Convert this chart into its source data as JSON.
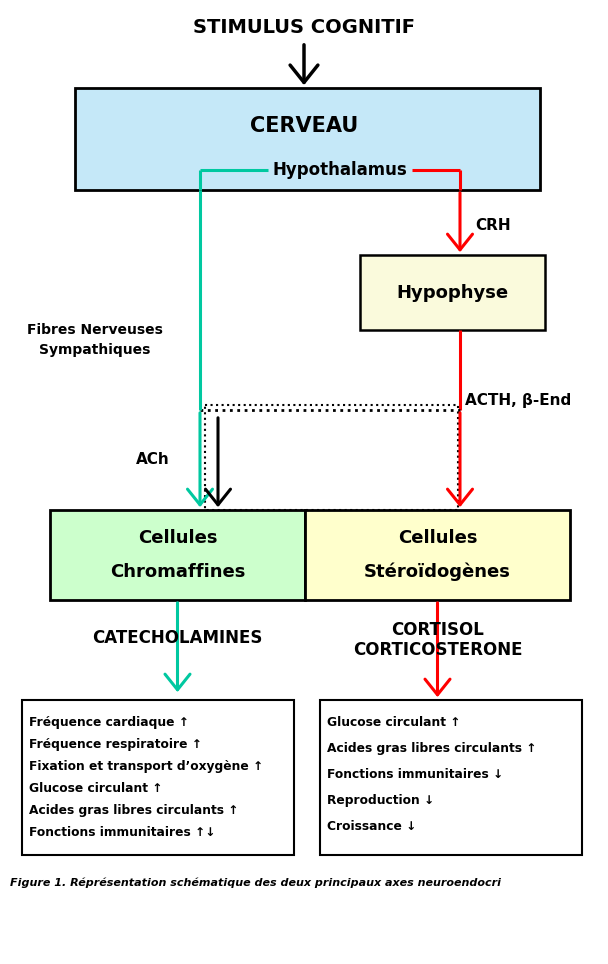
{
  "title": "STIMULUS COGNITIF",
  "cerveau_label": "CERVEAU",
  "hypothalamus_label": "Hypothalamus",
  "crh_label": "CRH",
  "hypophyse_label": "Hypophyse",
  "acth_label": "ACTH, β-End",
  "fibres_label": "Fibres Nerveuses\nSympathiques",
  "ach_label": "ACh",
  "chromaffines_label": "Cellules\nChromaffines",
  "steroidogenes_label": "Cellules\nStéroïdogènes",
  "catecholamines_label": "CATECHOLAMINES",
  "cortisol_label1": "CORTISOL",
  "cortisol_label2": "CORTICOSTERONE",
  "left_box_items": [
    "Fréquence cardiaque ↑",
    "Fréquence respiratoire ↑",
    "Fixation et transport d’oxygène ↑",
    "Glucose circulant ↑",
    "Acides gras libres circulants ↑",
    "Fonctions immunitaires ↑↓"
  ],
  "right_box_items": [
    "Glucose circulant ↑",
    "Acides gras libres circulants ↑",
    "Fonctions immunitaires ↓",
    "Reproduction ↓",
    "Croissance ↓"
  ],
  "caption": "Figure 1. Réprésentation schématique des deux principaux axes neuroendocri",
  "color_green": "#00C8A0",
  "color_red": "#FF0000",
  "color_black": "#000000",
  "color_cerveau_bg": "#C5E8F8",
  "color_hypophyse_bg": "#FAFADC",
  "color_chromaffines_bg": "#CCFFCC",
  "color_steroidogenes_bg": "#FFFFCC",
  "color_bg": "#FFFFFF"
}
